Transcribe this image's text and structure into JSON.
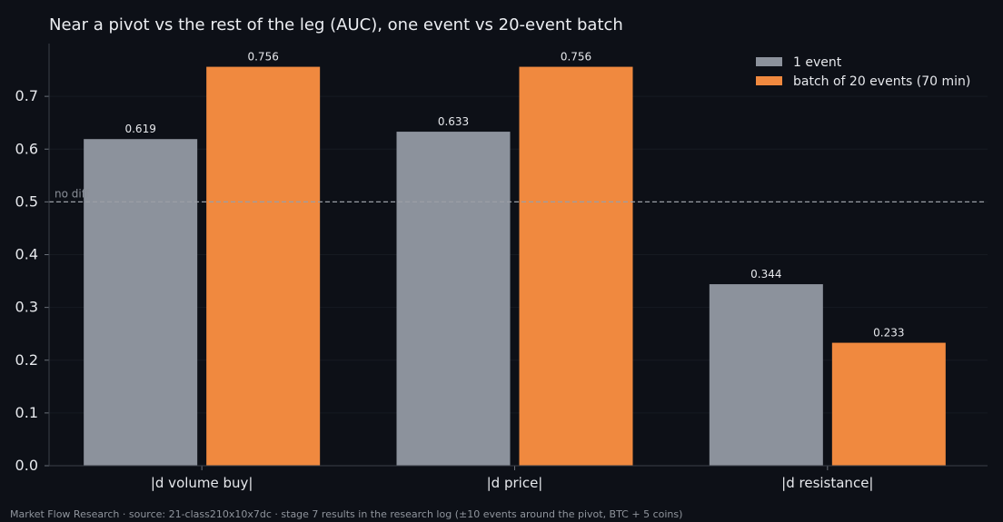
{
  "chart_data": {
    "type": "bar",
    "title": "Near a pivot vs the rest of the leg (AUC), one event vs 20-event batch",
    "xlabel": "",
    "ylabel": "",
    "categories": [
      "|d volume buy|",
      "|d price|",
      "|d resistance|"
    ],
    "series": [
      {
        "name": "1 event",
        "values": [
          0.619,
          0.633,
          0.344
        ],
        "labels": [
          "0.619",
          "0.633",
          "0.344"
        ],
        "color": "#8c929c"
      },
      {
        "name": "batch of 20 events (70 min)",
        "values": [
          0.756,
          0.756,
          0.233
        ],
        "labels": [
          "0.756",
          "0.756",
          "0.233"
        ],
        "color": "#f0893f"
      }
    ],
    "ylim": [
      0,
      0.8
    ],
    "yticks": [
      "0.0",
      "0.1",
      "0.2",
      "0.3",
      "0.4",
      "0.5",
      "0.6",
      "0.7"
    ],
    "reference_line": {
      "value": 0.5,
      "label": "no diff",
      "color": "#9a9ea6"
    },
    "grid": "horizontal",
    "legend_position": "top-right"
  },
  "footer": "Market Flow Research · source: 21-class210x10x7dc · stage 7 results in the research log (±10 events around the pivot, BTC + 5 coins)",
  "colors": {
    "background": "#0d1017",
    "axis": "#3a3f48",
    "grid": "#161a22"
  }
}
